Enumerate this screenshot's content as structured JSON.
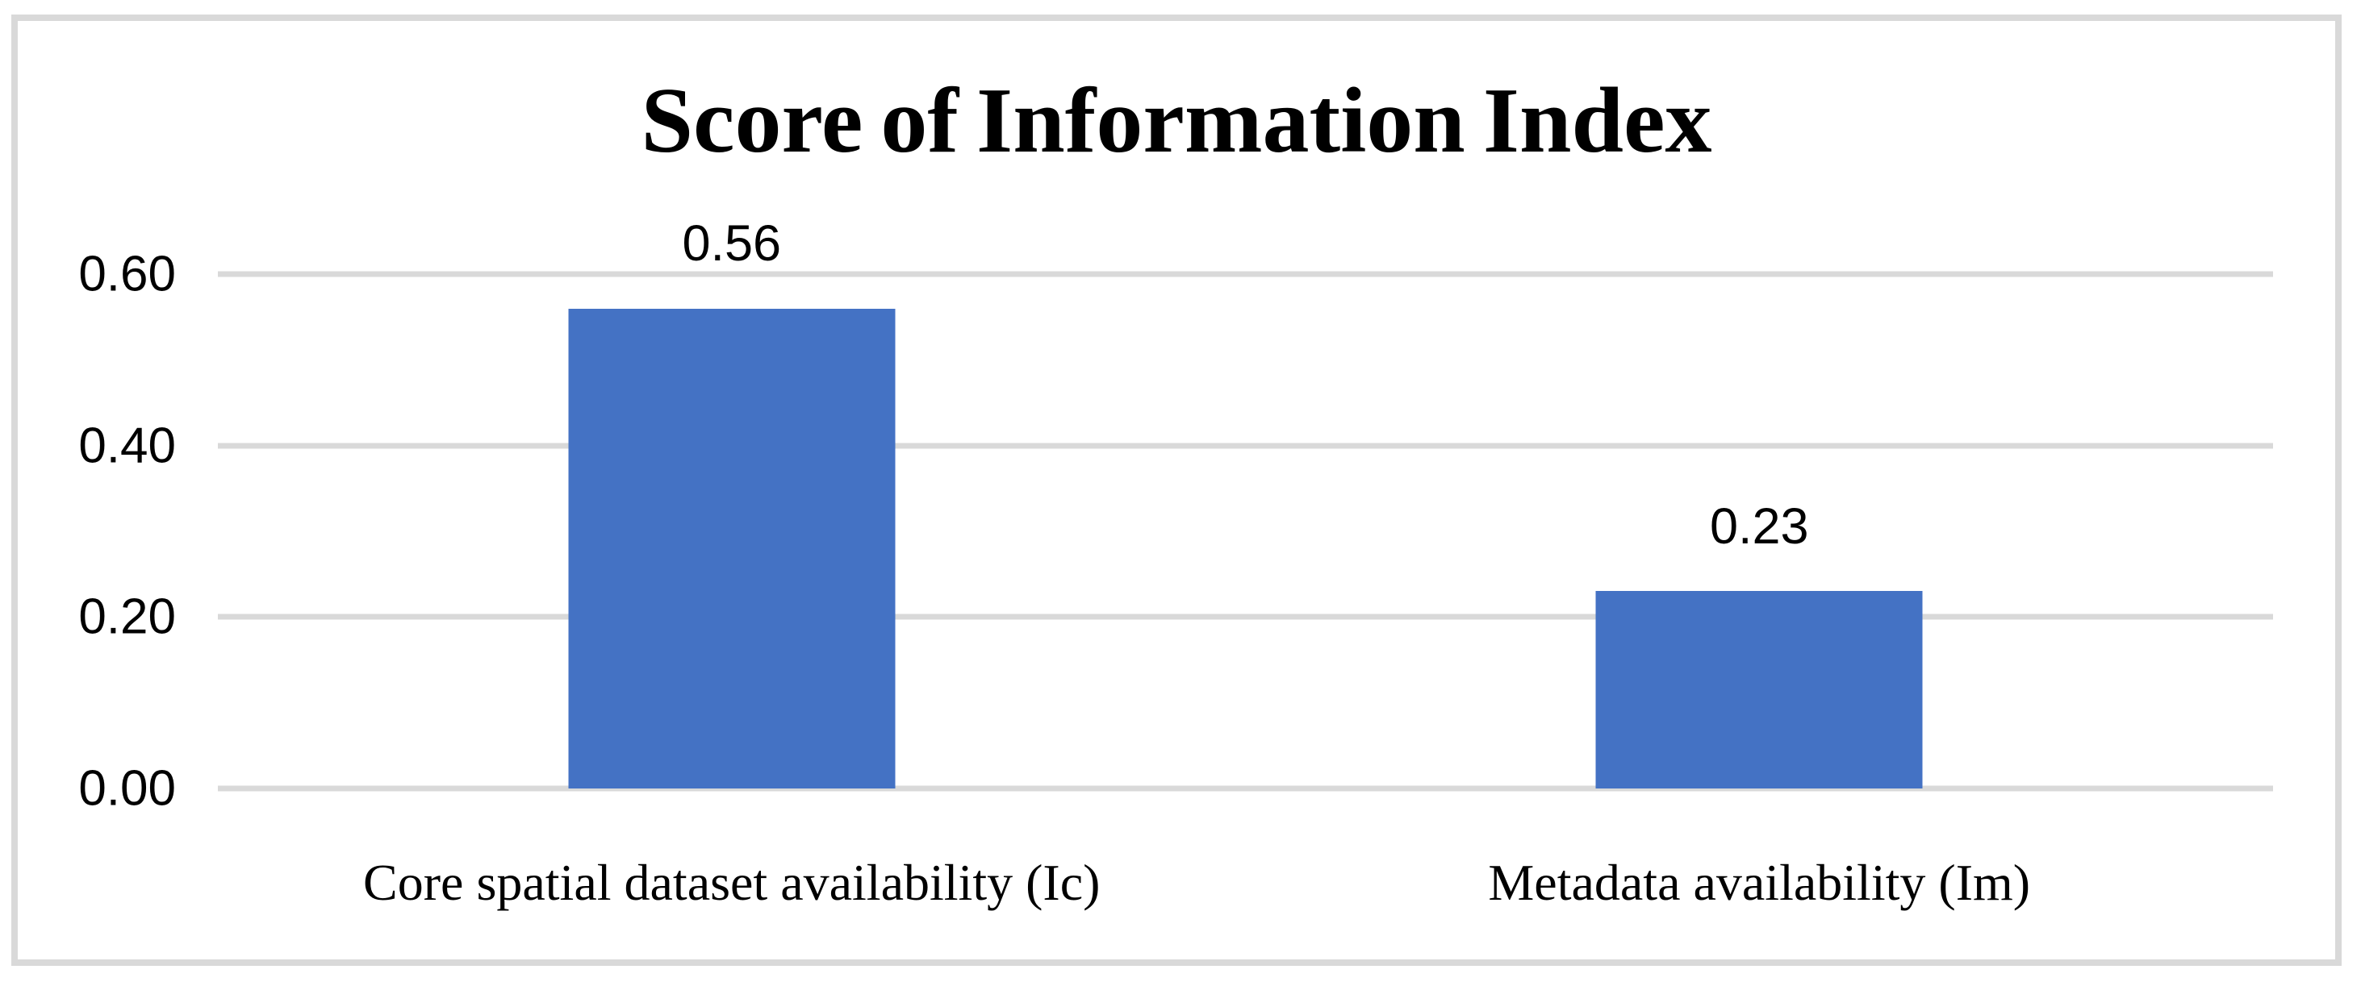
{
  "figure": {
    "background": "#FFFFFF",
    "border_color": "#D9D9D9"
  },
  "chart_data": {
    "type": "bar",
    "title": "Score of Information Index",
    "categories": [
      "Core spatial dataset availability (Ic)",
      "Metadata availability (Im)"
    ],
    "values": [
      0.56,
      0.23
    ],
    "data_labels": [
      "0.56",
      "0.23"
    ],
    "xlabel": "",
    "ylabel": "",
    "ylim": [
      0,
      0.6
    ],
    "y_ticks": [
      {
        "value": 0.6,
        "label": "0.60"
      },
      {
        "value": 0.4,
        "label": "0.40"
      },
      {
        "value": 0.2,
        "label": "0.20"
      },
      {
        "value": 0.0,
        "label": "0.00"
      }
    ],
    "grid": true,
    "legend_position": "none",
    "bar_color": "#4472C4",
    "gridline_color": "#D9D9D9",
    "text_color": "#000000"
  }
}
